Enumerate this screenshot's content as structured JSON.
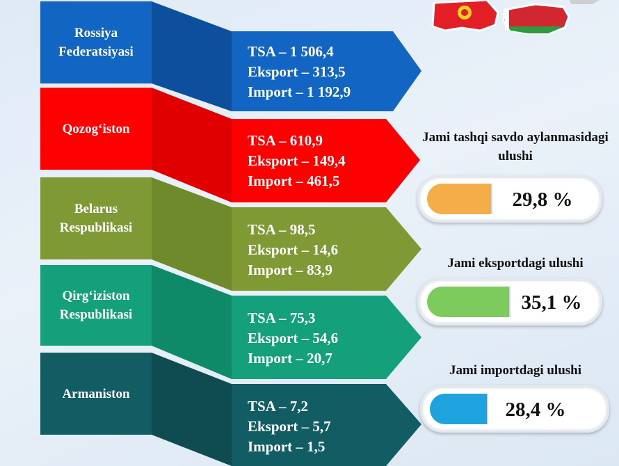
{
  "colors": {
    "russia": "#1265c2",
    "kazakhstan": "#ff0000",
    "belarus": "#7f9a34",
    "kyrgyzstan": "#13a07a",
    "armenia": "#125c63",
    "share_trade": "#f5ad47",
    "share_export": "#7ccb5c",
    "share_import": "#1fa3df"
  },
  "countries": [
    {
      "name": "Rossiya Federatsiyasi",
      "tsa": "TSA – 1 506,4",
      "export": "Eksport – 313,5",
      "import": "Import – 1 192,9"
    },
    {
      "name": "Qozog‘iston",
      "tsa": "TSA – 610,9",
      "export": "Eksport – 149,4",
      "import": "Import – 461,5"
    },
    {
      "name": "Belarus Respublikasi",
      "tsa": "TSA – 98,5",
      "export": "Eksport – 14,6",
      "import": "Import – 83,9"
    },
    {
      "name": "Qirg‘iziston Respublikasi",
      "tsa": "TSA – 75,3",
      "export": "Eksport – 54,6",
      "import": "Import – 20,7"
    },
    {
      "name": "Armaniston",
      "tsa": "TSA – 7,2",
      "export": "Eksport – 5,7",
      "import": "Import – 1,5"
    }
  ],
  "shares": [
    {
      "title": "Jami tashqi savdo aylanmasidagi ulushi",
      "value": "29,8 %",
      "level": 0.298
    },
    {
      "title": "Jami eksportdagi ulushi",
      "value": "35,1 %",
      "level": 0.351
    },
    {
      "title": "Jami importdagi ulushi",
      "value": "28,4 %",
      "level": 0.284
    }
  ],
  "icons": [
    "kyrgyzstan-flag-map-icon",
    "belarus-flag-map-icon"
  ]
}
